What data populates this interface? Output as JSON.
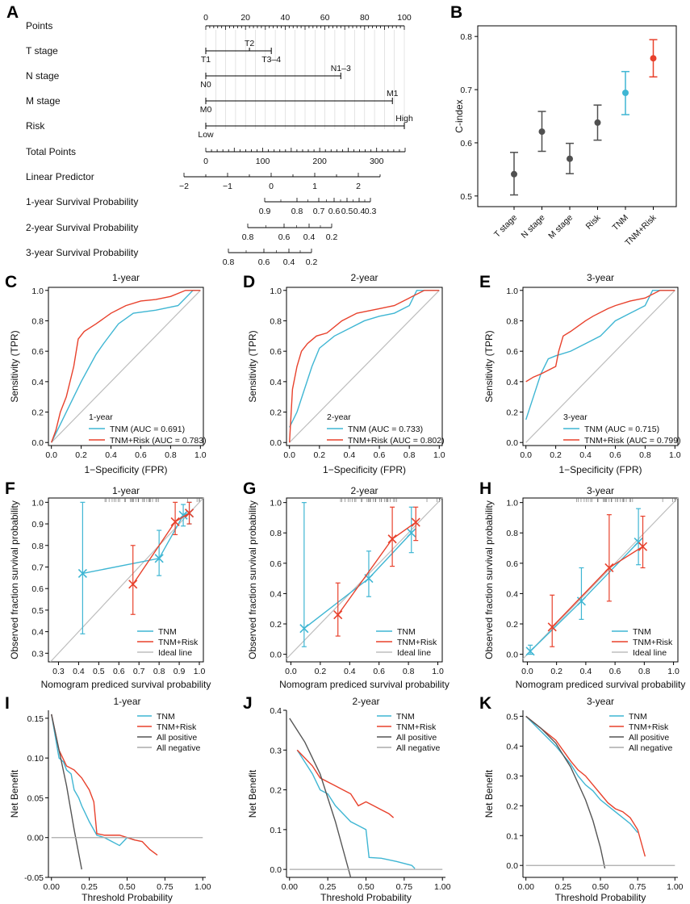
{
  "colors": {
    "tnm": "#3fb6d3",
    "risk": "#e8412c",
    "ideal": "#bdbdbd",
    "allpos": "#555555",
    "allneg": "#aaaaaa",
    "point": "#505050"
  },
  "chart_data": [
    {
      "panel": "A",
      "type": "nomogram",
      "rows": [
        {
          "label": "Points",
          "kind": "scale",
          "range": [
            0,
            100
          ],
          "ticks": [
            0,
            20,
            40,
            60,
            80,
            100
          ]
        },
        {
          "label": "T stage",
          "kind": "categorical",
          "levels": [
            {
              "name": "T1",
              "points": 0
            },
            {
              "name": "T2",
              "points": 22
            },
            {
              "name": "T3–4",
              "points": 33
            }
          ]
        },
        {
          "label": "N stage",
          "kind": "categorical",
          "levels": [
            {
              "name": "N0",
              "points": 0
            },
            {
              "name": "N1–3",
              "points": 68
            }
          ]
        },
        {
          "label": "M stage",
          "kind": "categorical",
          "levels": [
            {
              "name": "M0",
              "points": 0
            },
            {
              "name": "M1",
              "points": 94
            }
          ]
        },
        {
          "label": "Risk",
          "kind": "categorical",
          "levels": [
            {
              "name": "Low",
              "points": 0
            },
            {
              "name": "High",
              "points": 100
            }
          ]
        },
        {
          "label": "Total Points",
          "kind": "scale",
          "range": [
            0,
            350
          ],
          "ticks": [
            0,
            100,
            200,
            300
          ]
        },
        {
          "label": "Linear Predictor",
          "kind": "scale",
          "range": [
            -2,
            2.5
          ],
          "ticks": [
            -2,
            -1,
            0,
            1,
            2
          ]
        },
        {
          "label": "1‑year Survival Probability",
          "kind": "prob",
          "ticks": [
            "0.9",
            "0.8",
            "0.7",
            "0.6",
            "0.5",
            "0.4",
            "0.3"
          ]
        },
        {
          "label": "2‑year Survival Probability",
          "kind": "prob",
          "ticks": [
            "0.8",
            "0.6",
            "0.4",
            "0.2"
          ]
        },
        {
          "label": "3‑year Survival Probability",
          "kind": "prob",
          "ticks": [
            "0.8",
            "0.6",
            "0.4",
            "0.2"
          ]
        }
      ]
    },
    {
      "panel": "B",
      "type": "errorbar",
      "ylabel": "C-index",
      "ylim": [
        0.48,
        0.82
      ],
      "yticks": [
        "0.5",
        "0.6",
        "0.7",
        "0.8"
      ],
      "categories": [
        "T stage",
        "N stage",
        "M stage",
        "Risk",
        "TNM",
        "TNM+Risk"
      ],
      "values": [
        0.541,
        0.621,
        0.57,
        0.638,
        0.694,
        0.759
      ],
      "lower": [
        0.502,
        0.584,
        0.542,
        0.605,
        0.653,
        0.724
      ],
      "upper": [
        0.582,
        0.659,
        0.599,
        0.671,
        0.734,
        0.794
      ]
    },
    {
      "panel": "C",
      "type": "line",
      "title": "1-year",
      "xlabel": "1−Specificity (FPR)",
      "ylabel": "Sensitivity (TPR)",
      "legend_title": "1-year",
      "legend": [
        "TNM (AUC = 0.691)",
        "TNM+Risk (AUC = 0.783)"
      ],
      "series": [
        {
          "name": "TNM",
          "x": [
            0,
            0.05,
            0.1,
            0.15,
            0.2,
            0.3,
            0.35,
            0.45,
            0.55,
            0.7,
            0.85,
            0.95,
            1
          ],
          "y": [
            0,
            0.1,
            0.2,
            0.3,
            0.4,
            0.58,
            0.65,
            0.78,
            0.85,
            0.87,
            0.9,
            1,
            1
          ]
        },
        {
          "name": "TNM+Risk",
          "x": [
            0,
            0.03,
            0.06,
            0.1,
            0.15,
            0.18,
            0.22,
            0.3,
            0.4,
            0.5,
            0.6,
            0.7,
            0.8,
            0.9,
            1
          ],
          "y": [
            0,
            0.08,
            0.2,
            0.3,
            0.5,
            0.68,
            0.73,
            0.78,
            0.85,
            0.9,
            0.93,
            0.94,
            0.96,
            1,
            1
          ]
        }
      ]
    },
    {
      "panel": "D",
      "type": "line",
      "title": "2-year",
      "xlabel": "1−Specificity (FPR)",
      "ylabel": "Sensitivity (TPR)",
      "legend_title": "2-year",
      "legend": [
        "TNM (AUC = 0.733)",
        "TNM+Risk (AUC = 0.802)"
      ],
      "series": [
        {
          "name": "TNM",
          "x": [
            0,
            0.05,
            0.1,
            0.15,
            0.2,
            0.3,
            0.4,
            0.5,
            0.6,
            0.7,
            0.8,
            0.85,
            0.9,
            1
          ],
          "y": [
            0.1,
            0.2,
            0.35,
            0.5,
            0.62,
            0.7,
            0.75,
            0.8,
            0.83,
            0.85,
            0.9,
            1,
            1,
            1
          ]
        },
        {
          "name": "TNM+Risk",
          "x": [
            0,
            0.02,
            0.05,
            0.08,
            0.12,
            0.18,
            0.25,
            0.35,
            0.45,
            0.5,
            0.6,
            0.7,
            0.8,
            0.9,
            1
          ],
          "y": [
            0,
            0.35,
            0.5,
            0.6,
            0.65,
            0.7,
            0.72,
            0.8,
            0.85,
            0.86,
            0.88,
            0.9,
            0.95,
            1,
            1
          ]
        }
      ]
    },
    {
      "panel": "E",
      "type": "line",
      "title": "3-year",
      "xlabel": "1−Specificity (FPR)",
      "ylabel": "Sensitivity (TPR)",
      "legend_title": "3-year",
      "legend": [
        "TNM (AUC = 0.715)",
        "TNM+Risk (AUC = 0.799)"
      ],
      "series": [
        {
          "name": "TNM",
          "x": [
            0,
            0.05,
            0.1,
            0.15,
            0.2,
            0.3,
            0.4,
            0.5,
            0.6,
            0.7,
            0.8,
            0.85,
            0.9,
            1
          ],
          "y": [
            0.15,
            0.3,
            0.45,
            0.55,
            0.57,
            0.6,
            0.65,
            0.7,
            0.8,
            0.85,
            0.9,
            1,
            1,
            1
          ]
        },
        {
          "name": "TNM+Risk",
          "x": [
            0,
            0.05,
            0.1,
            0.2,
            0.22,
            0.25,
            0.3,
            0.4,
            0.45,
            0.55,
            0.6,
            0.7,
            0.8,
            0.9,
            1
          ],
          "y": [
            0.4,
            0.43,
            0.45,
            0.5,
            0.6,
            0.7,
            0.73,
            0.8,
            0.83,
            0.88,
            0.9,
            0.93,
            0.95,
            1,
            1
          ]
        }
      ]
    },
    {
      "panel": "F",
      "type": "calibration",
      "title": "1-year",
      "xlabel": "Nomogram prediced survival probability",
      "ylabel": "Observed fraction survival probability",
      "xlim": [
        0.25,
        1.02
      ],
      "ylim": [
        0.26,
        1.02
      ],
      "xticks": [
        "0.3",
        "0.4",
        "0.5",
        "0.6",
        "0.7",
        "0.8",
        "0.9",
        "1.0"
      ],
      "yticks": [
        "0.3",
        "0.4",
        "0.5",
        "0.6",
        "0.7",
        "0.8",
        "0.9",
        "1.0"
      ],
      "legend": [
        "TNM",
        "TNM+Risk",
        "Ideal line"
      ],
      "series": [
        {
          "name": "TNM",
          "x": [
            0.42,
            0.8,
            0.92,
            0.95
          ],
          "y": [
            0.67,
            0.74,
            0.94,
            0.95
          ],
          "lo": [
            0.39,
            0.66,
            0.89,
            0.9
          ],
          "hi": [
            1.0,
            0.87,
            0.99,
            1.0
          ]
        },
        {
          "name": "TNM+Risk",
          "x": [
            0.67,
            0.88,
            0.95
          ],
          "y": [
            0.62,
            0.91,
            0.95
          ],
          "lo": [
            0.48,
            0.85,
            0.9
          ],
          "hi": [
            0.8,
            1.0,
            1.0
          ]
        }
      ]
    },
    {
      "panel": "G",
      "type": "calibration",
      "title": "2-year",
      "xlabel": "Nomogram prediced survival probability",
      "ylabel": "Observed fraction survival probability",
      "xlim": [
        -0.03,
        1.03
      ],
      "ylim": [
        -0.05,
        1.03
      ],
      "xticks": [
        "0.0",
        "0.2",
        "0.4",
        "0.6",
        "0.8",
        "1.0"
      ],
      "yticks": [
        "0.0",
        "0.2",
        "0.4",
        "0.6",
        "0.8",
        "1.0"
      ],
      "legend": [
        "TNM",
        "TNM+Risk",
        "Ideal line"
      ],
      "series": [
        {
          "name": "TNM",
          "x": [
            0.09,
            0.53,
            0.82
          ],
          "y": [
            0.17,
            0.5,
            0.8
          ],
          "lo": [
            0.05,
            0.38,
            0.67
          ],
          "hi": [
            1.0,
            0.68,
            0.97
          ]
        },
        {
          "name": "TNM+Risk",
          "x": [
            0.32,
            0.69,
            0.85
          ],
          "y": [
            0.26,
            0.76,
            0.87
          ],
          "lo": [
            0.12,
            0.58,
            0.75
          ],
          "hi": [
            0.47,
            0.97,
            0.97
          ]
        }
      ]
    },
    {
      "panel": "H",
      "type": "calibration",
      "title": "3-year",
      "xlabel": "Nomogram prediced survival probability",
      "ylabel": "Observed fraction survival probability",
      "xlim": [
        -0.03,
        1.03
      ],
      "ylim": [
        -0.05,
        1.03
      ],
      "xticks": [
        "0.0",
        "0.2",
        "0.4",
        "0.6",
        "0.8",
        "1.0"
      ],
      "yticks": [
        "0.0",
        "0.2",
        "0.4",
        "0.6",
        "0.8",
        "1.0"
      ],
      "legend": [
        "TNM",
        "TNM+Risk",
        "Ideal line"
      ],
      "series": [
        {
          "name": "TNM",
          "x": [
            0.02,
            0.37,
            0.76
          ],
          "y": [
            0.02,
            0.35,
            0.74
          ],
          "lo": [
            0.0,
            0.23,
            0.59
          ],
          "hi": [
            0.06,
            0.57,
            0.96
          ]
        },
        {
          "name": "TNM+Risk",
          "x": [
            0.17,
            0.56,
            0.79
          ],
          "y": [
            0.18,
            0.57,
            0.71
          ],
          "lo": [
            0.05,
            0.35,
            0.57
          ],
          "hi": [
            0.39,
            0.92,
            0.91
          ]
        }
      ]
    },
    {
      "panel": "I",
      "type": "line",
      "title": "1-year",
      "xlabel": "Threshold Probability",
      "ylabel": "Net Benefit",
      "xlim": [
        -0.02,
        1.02
      ],
      "ylim": [
        -0.05,
        0.16
      ],
      "xticks": [
        "0.00",
        "0.25",
        "0.50",
        "0.75",
        "1.00"
      ],
      "yticks": [
        "-0.05",
        "0.00",
        "0.05",
        "0.10",
        "0.15"
      ],
      "legend": [
        "TNM",
        "TNM+Risk",
        "All positive",
        "All negative"
      ],
      "series": [
        {
          "name": "TNM",
          "x": [
            0,
            0.05,
            0.08,
            0.1,
            0.13,
            0.15,
            0.18,
            0.2,
            0.25,
            0.3,
            0.35,
            0.4,
            0.45,
            0.5,
            0.55
          ],
          "y": [
            0.155,
            0.1,
            0.095,
            0.085,
            0.08,
            0.06,
            0.05,
            0.04,
            0.02,
            0.003,
            0.0,
            -0.005,
            -0.01,
            0.0,
            -0.003
          ]
        },
        {
          "name": "TNM+Risk",
          "x": [
            0,
            0.05,
            0.1,
            0.15,
            0.2,
            0.25,
            0.28,
            0.3,
            0.35,
            0.4,
            0.45,
            0.5,
            0.55,
            0.6,
            0.65,
            0.7
          ],
          "y": [
            0.155,
            0.11,
            0.09,
            0.085,
            0.075,
            0.06,
            0.045,
            0.005,
            0.003,
            0.003,
            0.003,
            0.0,
            -0.003,
            -0.005,
            -0.015,
            -0.022
          ]
        },
        {
          "name": "All positive",
          "x": [
            0,
            0.05,
            0.1,
            0.15,
            0.2
          ],
          "y": [
            0.155,
            0.11,
            0.065,
            0.01,
            -0.04
          ]
        },
        {
          "name": "All negative",
          "x": [
            0,
            1
          ],
          "y": [
            0,
            0
          ]
        }
      ]
    },
    {
      "panel": "J",
      "type": "line",
      "title": "2-year",
      "xlabel": "Threshold Probability",
      "ylabel": "Net Benefit",
      "xlim": [
        -0.02,
        1.02
      ],
      "ylim": [
        -0.02,
        0.4
      ],
      "xticks": [
        "0.00",
        "0.25",
        "0.50",
        "0.75",
        "1.00"
      ],
      "yticks": [
        "0.0",
        "0.1",
        "0.2",
        "0.3",
        "0.4"
      ],
      "legend": [
        "TNM",
        "TNM+Risk",
        "All positive",
        "All negative"
      ],
      "series": [
        {
          "name": "TNM",
          "x": [
            0.05,
            0.1,
            0.15,
            0.2,
            0.25,
            0.3,
            0.35,
            0.4,
            0.45,
            0.5,
            0.52,
            0.6,
            0.7,
            0.8,
            0.82
          ],
          "y": [
            0.3,
            0.27,
            0.24,
            0.2,
            0.19,
            0.16,
            0.14,
            0.12,
            0.11,
            0.1,
            0.03,
            0.028,
            0.02,
            0.01,
            0.002
          ]
        },
        {
          "name": "TNM+Risk",
          "x": [
            0.05,
            0.1,
            0.15,
            0.2,
            0.25,
            0.3,
            0.35,
            0.4,
            0.45,
            0.5,
            0.55,
            0.6,
            0.65,
            0.68
          ],
          "y": [
            0.3,
            0.28,
            0.26,
            0.23,
            0.22,
            0.21,
            0.2,
            0.19,
            0.16,
            0.17,
            0.16,
            0.15,
            0.14,
            0.13
          ]
        },
        {
          "name": "All positive",
          "x": [
            0,
            0.1,
            0.2,
            0.3,
            0.35,
            0.4
          ],
          "y": [
            0.38,
            0.32,
            0.24,
            0.12,
            0.05,
            -0.02
          ]
        },
        {
          "name": "All negative",
          "x": [
            0,
            1
          ],
          "y": [
            0,
            0
          ]
        }
      ]
    },
    {
      "panel": "K",
      "type": "line",
      "title": "3-year",
      "xlabel": "Threshold Probability",
      "ylabel": "Net Benefit",
      "xlim": [
        -0.02,
        1.02
      ],
      "ylim": [
        -0.04,
        0.52
      ],
      "xticks": [
        "0.00",
        "0.25",
        "0.50",
        "0.75",
        "1.00"
      ],
      "yticks": [
        "0.0",
        "0.1",
        "0.2",
        "0.3",
        "0.4",
        "0.5"
      ],
      "legend": [
        "TNM",
        "TNM+Risk",
        "All positive",
        "All negative"
      ],
      "series": [
        {
          "name": "TNM",
          "x": [
            0,
            0.1,
            0.2,
            0.3,
            0.35,
            0.4,
            0.45,
            0.5,
            0.55,
            0.6,
            0.65,
            0.7,
            0.75
          ],
          "y": [
            0.5,
            0.45,
            0.4,
            0.34,
            0.3,
            0.27,
            0.25,
            0.22,
            0.2,
            0.18,
            0.16,
            0.14,
            0.11
          ]
        },
        {
          "name": "TNM+Risk",
          "x": [
            0,
            0.1,
            0.2,
            0.3,
            0.35,
            0.4,
            0.45,
            0.5,
            0.55,
            0.6,
            0.65,
            0.7,
            0.75,
            0.8
          ],
          "y": [
            0.5,
            0.46,
            0.42,
            0.35,
            0.32,
            0.3,
            0.27,
            0.24,
            0.21,
            0.19,
            0.18,
            0.16,
            0.12,
            0.03
          ]
        },
        {
          "name": "All positive",
          "x": [
            0,
            0.1,
            0.2,
            0.3,
            0.4,
            0.45,
            0.5,
            0.53
          ],
          "y": [
            0.5,
            0.46,
            0.41,
            0.33,
            0.22,
            0.15,
            0.06,
            -0.01
          ]
        },
        {
          "name": "All negative",
          "x": [
            0,
            1
          ],
          "y": [
            0,
            0
          ]
        }
      ]
    }
  ]
}
